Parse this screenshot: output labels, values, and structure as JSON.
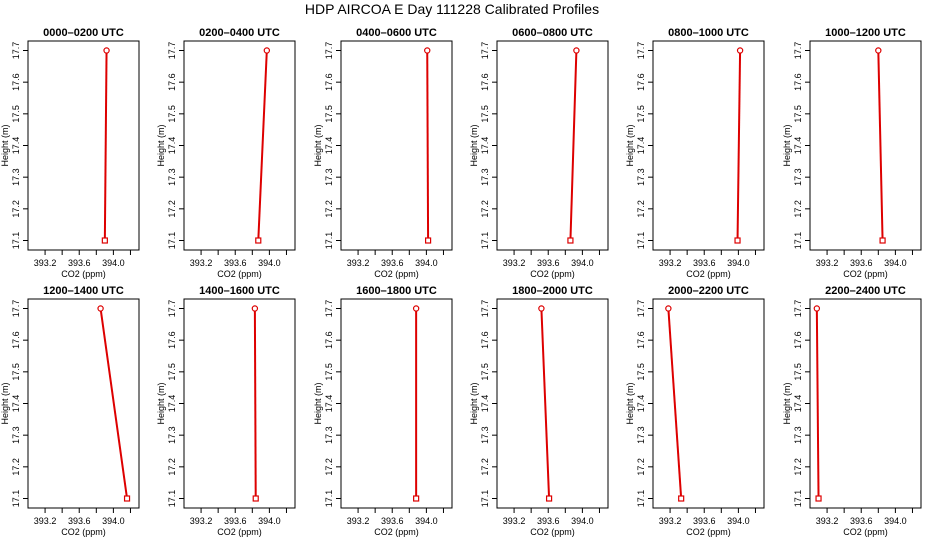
{
  "page": {
    "title": "HDP AIRCOA E  Day 111228  Calibrated Profiles"
  },
  "colors": {
    "series": "#dd0000",
    "axis": "#000000"
  },
  "chart_data": [
    {
      "type": "line",
      "title": "0000–0200 UTC",
      "xlabel": "CO2 (ppm)",
      "ylabel": "Height (m)",
      "xlim": [
        393.0,
        394.3
      ],
      "ylim": [
        17.07,
        17.73
      ],
      "xticks": [
        "393.2",
        "393.6",
        "394.0"
      ],
      "yticks": [
        "17.1",
        "17.2",
        "17.3",
        "17.4",
        "17.5",
        "17.6",
        "17.7"
      ],
      "grid": false,
      "series": [
        {
          "x": [
            393.9,
            393.92
          ],
          "y": [
            17.1,
            17.7
          ]
        }
      ]
    },
    {
      "type": "line",
      "title": "0200–0400 UTC",
      "xlabel": "CO2 (ppm)",
      "ylabel": "Height (m)",
      "xlim": [
        393.0,
        394.3
      ],
      "ylim": [
        17.07,
        17.73
      ],
      "xticks": [
        "393.2",
        "393.6",
        "394.0"
      ],
      "yticks": [
        "17.1",
        "17.2",
        "17.3",
        "17.4",
        "17.5",
        "17.6",
        "17.7"
      ],
      "grid": false,
      "series": [
        {
          "x": [
            393.87,
            393.97
          ],
          "y": [
            17.1,
            17.7
          ]
        }
      ]
    },
    {
      "type": "line",
      "title": "0400–0600 UTC",
      "xlabel": "CO2 (ppm)",
      "ylabel": "Height (m)",
      "xlim": [
        393.0,
        394.3
      ],
      "ylim": [
        17.07,
        17.73
      ],
      "xticks": [
        "393.2",
        "393.6",
        "394.0"
      ],
      "yticks": [
        "17.1",
        "17.2",
        "17.3",
        "17.4",
        "17.5",
        "17.6",
        "17.7"
      ],
      "grid": false,
      "series": [
        {
          "x": [
            394.02,
            394.01
          ],
          "y": [
            17.1,
            17.7
          ]
        }
      ]
    },
    {
      "type": "line",
      "title": "0600–0800 UTC",
      "xlabel": "CO2 (ppm)",
      "ylabel": "Height (m)",
      "xlim": [
        393.0,
        394.3
      ],
      "ylim": [
        17.07,
        17.73
      ],
      "xticks": [
        "393.2",
        "393.6",
        "394.0"
      ],
      "yticks": [
        "17.1",
        "17.2",
        "17.3",
        "17.4",
        "17.5",
        "17.6",
        "17.7"
      ],
      "grid": false,
      "series": [
        {
          "x": [
            393.86,
            393.93
          ],
          "y": [
            17.1,
            17.7
          ]
        }
      ]
    },
    {
      "type": "line",
      "title": "0800–1000 UTC",
      "xlabel": "CO2 (ppm)",
      "ylabel": "Height (m)",
      "xlim": [
        393.0,
        394.3
      ],
      "ylim": [
        17.07,
        17.73
      ],
      "xticks": [
        "393.2",
        "393.6",
        "394.0"
      ],
      "yticks": [
        "17.1",
        "17.2",
        "17.3",
        "17.4",
        "17.5",
        "17.6",
        "17.7"
      ],
      "grid": false,
      "series": [
        {
          "x": [
            393.99,
            394.02
          ],
          "y": [
            17.1,
            17.7
          ]
        }
      ]
    },
    {
      "type": "line",
      "title": "1000–1200 UTC",
      "xlabel": "CO2 (ppm)",
      "ylabel": "Height (m)",
      "xlim": [
        393.0,
        394.3
      ],
      "ylim": [
        17.07,
        17.73
      ],
      "xticks": [
        "393.2",
        "393.6",
        "394.0"
      ],
      "yticks": [
        "17.1",
        "17.2",
        "17.3",
        "17.4",
        "17.5",
        "17.6",
        "17.7"
      ],
      "grid": false,
      "series": [
        {
          "x": [
            393.85,
            393.8
          ],
          "y": [
            17.1,
            17.7
          ]
        }
      ]
    },
    {
      "type": "line",
      "title": "1200–1400 UTC",
      "xlabel": "CO2 (ppm)",
      "ylabel": "Height (m)",
      "xlim": [
        393.0,
        394.3
      ],
      "ylim": [
        17.07,
        17.73
      ],
      "xticks": [
        "393.2",
        "393.6",
        "394.0"
      ],
      "yticks": [
        "17.1",
        "17.2",
        "17.3",
        "17.4",
        "17.5",
        "17.6",
        "17.7"
      ],
      "grid": false,
      "series": [
        {
          "x": [
            394.16,
            393.85
          ],
          "y": [
            17.1,
            17.7
          ]
        }
      ]
    },
    {
      "type": "line",
      "title": "1400–1600 UTC",
      "xlabel": "CO2 (ppm)",
      "ylabel": "Height (m)",
      "xlim": [
        393.0,
        394.3
      ],
      "ylim": [
        17.07,
        17.73
      ],
      "xticks": [
        "393.2",
        "393.6",
        "394.0"
      ],
      "yticks": [
        "17.1",
        "17.2",
        "17.3",
        "17.4",
        "17.5",
        "17.6",
        "17.7"
      ],
      "grid": false,
      "series": [
        {
          "x": [
            393.84,
            393.83
          ],
          "y": [
            17.1,
            17.7
          ]
        }
      ]
    },
    {
      "type": "line",
      "title": "1600–1800 UTC",
      "xlabel": "CO2 (ppm)",
      "ylabel": "Height (m)",
      "xlim": [
        393.0,
        394.3
      ],
      "ylim": [
        17.07,
        17.73
      ],
      "xticks": [
        "393.2",
        "393.6",
        "394.0"
      ],
      "yticks": [
        "17.1",
        "17.2",
        "17.3",
        "17.4",
        "17.5",
        "17.6",
        "17.7"
      ],
      "grid": false,
      "series": [
        {
          "x": [
            393.88,
            393.88
          ],
          "y": [
            17.1,
            17.7
          ]
        }
      ]
    },
    {
      "type": "line",
      "title": "1800–2000 UTC",
      "xlabel": "CO2 (ppm)",
      "ylabel": "Height (m)",
      "xlim": [
        393.0,
        394.3
      ],
      "ylim": [
        17.07,
        17.73
      ],
      "xticks": [
        "393.2",
        "393.6",
        "394.0"
      ],
      "yticks": [
        "17.1",
        "17.2",
        "17.3",
        "17.4",
        "17.5",
        "17.6",
        "17.7"
      ],
      "grid": false,
      "series": [
        {
          "x": [
            393.61,
            393.52
          ],
          "y": [
            17.1,
            17.7
          ]
        }
      ]
    },
    {
      "type": "line",
      "title": "2000–2200 UTC",
      "xlabel": "CO2 (ppm)",
      "ylabel": "Height (m)",
      "xlim": [
        393.0,
        394.3
      ],
      "ylim": [
        17.07,
        17.73
      ],
      "xticks": [
        "393.2",
        "393.6",
        "394.0"
      ],
      "yticks": [
        "17.1",
        "17.2",
        "17.3",
        "17.4",
        "17.5",
        "17.6",
        "17.7"
      ],
      "grid": false,
      "series": [
        {
          "x": [
            393.33,
            393.18
          ],
          "y": [
            17.1,
            17.7
          ]
        }
      ]
    },
    {
      "type": "line",
      "title": "2200–2400 UTC",
      "xlabel": "CO2 (ppm)",
      "ylabel": "Height (m)",
      "xlim": [
        393.0,
        394.3
      ],
      "ylim": [
        17.07,
        17.73
      ],
      "xticks": [
        "393.2",
        "393.6",
        "394.0"
      ],
      "yticks": [
        "17.1",
        "17.2",
        "17.3",
        "17.4",
        "17.5",
        "17.6",
        "17.7"
      ],
      "grid": false,
      "series": [
        {
          "x": [
            393.1,
            393.08
          ],
          "y": [
            17.1,
            17.7
          ]
        }
      ]
    }
  ]
}
